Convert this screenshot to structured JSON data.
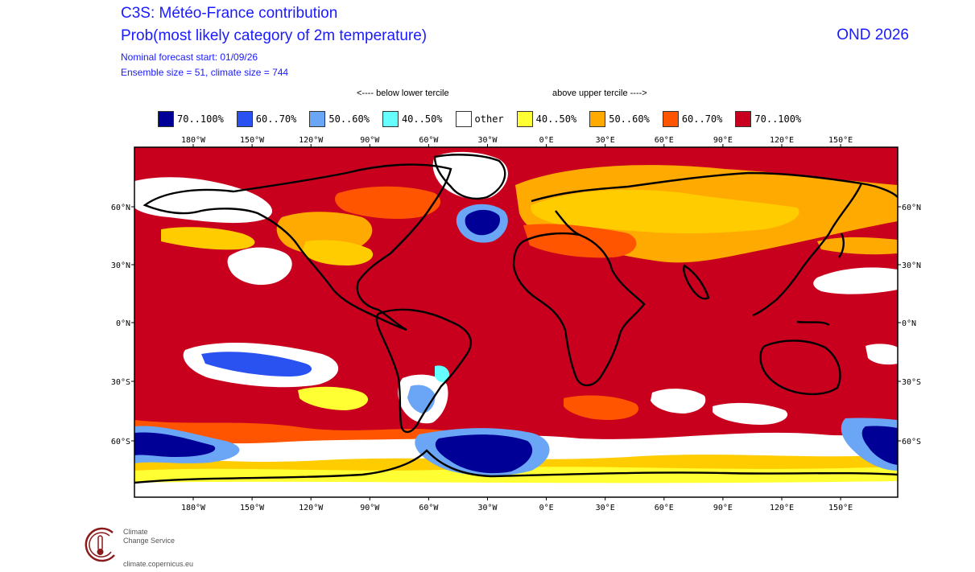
{
  "header": {
    "title": "C3S: Météo-France contribution",
    "subtitle": "Prob(most likely category of 2m temperature)",
    "forecast_start": "Nominal forecast start: 01/09/26",
    "ensemble": "Ensemble size = 51, climate size = 744",
    "season": "OND 2026"
  },
  "legend": {
    "below_label": "<---- below lower tercile",
    "above_label": "above upper tercile ---->",
    "items": [
      {
        "label": "70..100%",
        "color": "#000096"
      },
      {
        "label": "60..70%",
        "color": "#2a52f0"
      },
      {
        "label": "50..60%",
        "color": "#6aa6f5"
      },
      {
        "label": "40..50%",
        "color": "#66ffff"
      },
      {
        "label": "other",
        "color": "#ffffff"
      },
      {
        "label": "40..50%",
        "color": "#ffff33"
      },
      {
        "label": "50..60%",
        "color": "#ffaa00"
      },
      {
        "label": "60..70%",
        "color": "#ff5500"
      },
      {
        "label": "70..100%",
        "color": "#c8001e"
      }
    ]
  },
  "map": {
    "lon_ticks": [
      "180°W",
      "150°W",
      "120°W",
      "90°W",
      "60°W",
      "30°W",
      "0°E",
      "30°E",
      "60°E",
      "90°E",
      "120°E",
      "150°E"
    ],
    "lat_ticks": [
      "60°N",
      "30°N",
      "0°N",
      "30°S",
      "60°S"
    ]
  },
  "logo": {
    "line1": "Climate",
    "line2": "Change Service",
    "url": "climate.copernicus.eu"
  }
}
